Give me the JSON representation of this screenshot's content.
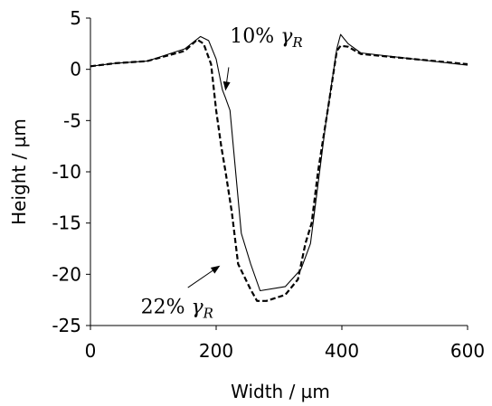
{
  "chart_data": {
    "type": "line",
    "title": "",
    "xlabel": "Width / µm",
    "ylabel": "Height / µm",
    "xlim": [
      0,
      600
    ],
    "ylim": [
      -25,
      5
    ],
    "xticks": [
      0,
      200,
      400,
      600
    ],
    "xtick_labels": [
      "0",
      "200",
      "400",
      "600"
    ],
    "yticks": [
      -25,
      -20,
      -15,
      -10,
      -5,
      0,
      5
    ],
    "ytick_labels": [
      "-25",
      "-20",
      "-15",
      "-10",
      "-5",
      "0",
      "5"
    ],
    "grid": false,
    "legend": "none",
    "series": [
      {
        "name": "10% γR",
        "line_style": "solid",
        "color": "#000000",
        "x": [
          0,
          40,
          90,
          150,
          175,
          188,
          200,
          210,
          215,
          222,
          240,
          255,
          270,
          310,
          335,
          350,
          375,
          392,
          398,
          410,
          430,
          600
        ],
        "y": [
          0.3,
          0.6,
          0.8,
          2.0,
          3.2,
          2.8,
          1.0,
          -2.0,
          -2.8,
          -4.0,
          -16.0,
          -19.0,
          -21.6,
          -21.2,
          -19.5,
          -17.0,
          -5.0,
          2.0,
          3.4,
          2.5,
          1.6,
          0.4
        ]
      },
      {
        "name": "22% γR",
        "line_style": "dashed",
        "color": "#000000",
        "x": [
          0,
          40,
          90,
          150,
          170,
          180,
          192,
          200,
          208,
          215,
          225,
          235,
          255,
          265,
          280,
          310,
          330,
          342,
          352,
          362,
          380,
          392,
          398,
          410,
          430,
          600
        ],
        "y": [
          0.3,
          0.6,
          0.8,
          1.8,
          2.9,
          2.5,
          0.5,
          -4.0,
          -7.5,
          -10.0,
          -14.0,
          -19.0,
          -21.5,
          -22.6,
          -22.6,
          -22.0,
          -20.5,
          -17.0,
          -15.0,
          -10.0,
          -3.0,
          1.8,
          2.3,
          2.2,
          1.5,
          0.5
        ]
      }
    ],
    "annotations": [
      {
        "text": "10%",
        "symbol": "γ",
        "subscript": "R",
        "text_pos": [
          222,
          2.6
        ],
        "arrow_from": [
          220,
          0.2
        ],
        "arrow_to": [
          215,
          -2.0
        ]
      },
      {
        "text": "22%",
        "symbol": "γ",
        "subscript": "R",
        "text_pos": [
          80,
          -23.8
        ],
        "arrow_from": [
          155,
          -21.3
        ],
        "arrow_to": [
          205,
          -19.2
        ]
      }
    ]
  }
}
